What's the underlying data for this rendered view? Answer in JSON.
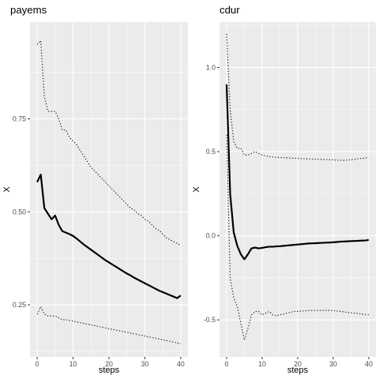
{
  "chart_data": [
    {
      "type": "line",
      "title": "payems",
      "xlabel": "steps",
      "ylabel": "X",
      "xlim": [
        -2,
        42
      ],
      "ylim": [
        0.11,
        1.01
      ],
      "xticks": [
        0,
        10,
        20,
        30,
        40
      ],
      "yticks": [
        0.25,
        0.5,
        0.75
      ],
      "ytick_labels": [
        "0.25",
        "0.50",
        "0.75"
      ],
      "grid": true,
      "x": [
        0,
        1,
        2,
        3,
        4,
        5,
        6,
        7,
        8,
        9,
        10,
        11,
        12,
        13,
        14,
        15,
        16,
        17,
        18,
        19,
        20,
        21,
        22,
        23,
        24,
        25,
        26,
        27,
        28,
        29,
        30,
        31,
        32,
        33,
        34,
        35,
        36,
        37,
        38,
        39,
        40
      ],
      "series": [
        {
          "role": "estimate",
          "style": "solid",
          "values": [
            0.58,
            0.6,
            0.51,
            0.495,
            0.48,
            0.49,
            0.465,
            0.448,
            0.444,
            0.44,
            0.435,
            0.428,
            0.42,
            0.412,
            0.405,
            0.398,
            0.391,
            0.384,
            0.377,
            0.37,
            0.364,
            0.358,
            0.352,
            0.346,
            0.34,
            0.334,
            0.329,
            0.323,
            0.318,
            0.313,
            0.308,
            0.303,
            0.298,
            0.293,
            0.288,
            0.284,
            0.28,
            0.276,
            0.272,
            0.268,
            0.275
          ]
        },
        {
          "role": "upper",
          "style": "dotted",
          "values": [
            0.95,
            0.96,
            0.81,
            0.77,
            0.77,
            0.77,
            0.75,
            0.72,
            0.72,
            0.7,
            0.69,
            0.68,
            0.665,
            0.65,
            0.635,
            0.62,
            0.61,
            0.6,
            0.59,
            0.58,
            0.57,
            0.56,
            0.55,
            0.54,
            0.53,
            0.52,
            0.51,
            0.505,
            0.495,
            0.49,
            0.48,
            0.475,
            0.465,
            0.455,
            0.45,
            0.44,
            0.43,
            0.425,
            0.42,
            0.415,
            0.41
          ]
        },
        {
          "role": "lower",
          "style": "dotted",
          "values": [
            0.225,
            0.245,
            0.225,
            0.22,
            0.22,
            0.22,
            0.215,
            0.21,
            0.21,
            0.208,
            0.206,
            0.204,
            0.202,
            0.2,
            0.198,
            0.196,
            0.194,
            0.192,
            0.19,
            0.188,
            0.186,
            0.184,
            0.182,
            0.18,
            0.178,
            0.176,
            0.174,
            0.172,
            0.17,
            0.168,
            0.166,
            0.164,
            0.162,
            0.16,
            0.158,
            0.156,
            0.154,
            0.152,
            0.15,
            0.148,
            0.145
          ]
        }
      ]
    },
    {
      "type": "line",
      "title": "cdur",
      "xlabel": "steps",
      "ylabel": "X",
      "xlim": [
        -2,
        42
      ],
      "ylim": [
        -0.72,
        1.27
      ],
      "xticks": [
        0,
        10,
        20,
        30,
        40
      ],
      "yticks": [
        -0.5,
        0.0,
        0.5,
        1.0
      ],
      "ytick_labels": [
        "-0.5",
        "0.0",
        "0.5",
        "1.0"
      ],
      "grid": true,
      "x": [
        0,
        1,
        2,
        3,
        4,
        5,
        6,
        7,
        8,
        9,
        10,
        11,
        12,
        13,
        14,
        15,
        16,
        17,
        18,
        19,
        20,
        21,
        22,
        23,
        24,
        25,
        26,
        27,
        28,
        29,
        30,
        31,
        32,
        33,
        34,
        35,
        36,
        37,
        38,
        39,
        40
      ],
      "series": [
        {
          "role": "estimate",
          "style": "solid",
          "values": [
            0.9,
            0.25,
            0.02,
            -0.06,
            -0.11,
            -0.14,
            -0.11,
            -0.075,
            -0.07,
            -0.075,
            -0.072,
            -0.068,
            -0.065,
            -0.065,
            -0.063,
            -0.062,
            -0.06,
            -0.058,
            -0.056,
            -0.054,
            -0.052,
            -0.05,
            -0.048,
            -0.046,
            -0.045,
            -0.044,
            -0.043,
            -0.042,
            -0.041,
            -0.04,
            -0.039,
            -0.037,
            -0.035,
            -0.034,
            -0.033,
            -0.032,
            -0.031,
            -0.03,
            -0.029,
            -0.028,
            -0.025
          ]
        },
        {
          "role": "upper",
          "style": "dotted",
          "values": [
            1.2,
            0.75,
            0.56,
            0.52,
            0.52,
            0.48,
            0.48,
            0.49,
            0.5,
            0.49,
            0.48,
            0.475,
            0.47,
            0.468,
            0.466,
            0.465,
            0.464,
            0.463,
            0.462,
            0.461,
            0.46,
            0.459,
            0.458,
            0.457,
            0.456,
            0.455,
            0.455,
            0.454,
            0.453,
            0.452,
            0.451,
            0.45,
            0.449,
            0.448,
            0.45,
            0.452,
            0.455,
            0.458,
            0.46,
            0.462,
            0.465
          ]
        },
        {
          "role": "lower",
          "style": "dotted",
          "values": [
            0.6,
            -0.25,
            -0.37,
            -0.42,
            -0.52,
            -0.62,
            -0.55,
            -0.47,
            -0.45,
            -0.45,
            -0.47,
            -0.46,
            -0.45,
            -0.47,
            -0.475,
            -0.47,
            -0.465,
            -0.46,
            -0.455,
            -0.45,
            -0.45,
            -0.448,
            -0.446,
            -0.445,
            -0.444,
            -0.444,
            -0.444,
            -0.444,
            -0.444,
            -0.444,
            -0.445,
            -0.447,
            -0.45,
            -0.452,
            -0.455,
            -0.458,
            -0.46,
            -0.462,
            -0.465,
            -0.468,
            -0.47
          ]
        }
      ]
    }
  ]
}
